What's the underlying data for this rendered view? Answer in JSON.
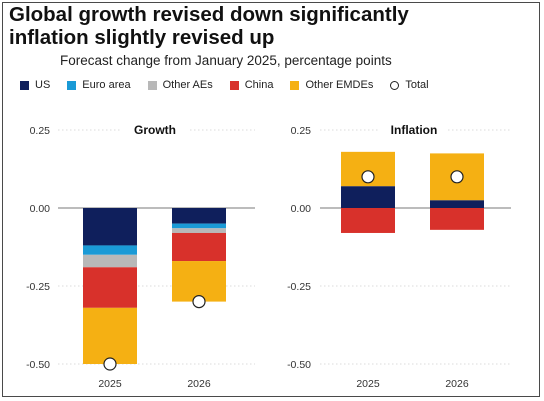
{
  "title_line1": "Global growth revised down significantly",
  "title_line2": "inflation slightly revised up",
  "subtitle": "Forecast change from January 2025, percentage points",
  "legend": [
    {
      "label": "US",
      "color": "#0f1f5c",
      "kind": "swatch"
    },
    {
      "label": "Euro area",
      "color": "#1a9ad6",
      "kind": "swatch"
    },
    {
      "label": "Other AEs",
      "color": "#b8b8b8",
      "kind": "swatch"
    },
    {
      "label": "China",
      "color": "#d8312b",
      "kind": "swatch"
    },
    {
      "label": "Other EMDEs",
      "color": "#f5b013",
      "kind": "swatch"
    },
    {
      "label": "Total",
      "color": "#ffffff",
      "kind": "marker"
    }
  ],
  "chart_data": [
    {
      "type": "bar",
      "stacked": true,
      "title": "Growth",
      "categories": [
        "2025",
        "2026"
      ],
      "ylim": [
        -0.5,
        0.25
      ],
      "yticks": [
        "0.25",
        "0.00",
        "-0.25",
        "-0.50"
      ],
      "yticks_values": [
        0.25,
        0,
        -0.25,
        -0.5
      ],
      "gridlines": true,
      "series": [
        {
          "name": "US",
          "color": "#0f1f5c",
          "values": [
            -0.12,
            -0.05
          ]
        },
        {
          "name": "Euro area",
          "color": "#1a9ad6",
          "values": [
            -0.03,
            -0.015
          ]
        },
        {
          "name": "Other AEs",
          "color": "#b8b8b8",
          "values": [
            -0.04,
            -0.015
          ]
        },
        {
          "name": "China",
          "color": "#d8312b",
          "values": [
            -0.13,
            -0.09
          ]
        },
        {
          "name": "Other EMDEs",
          "color": "#f5b013",
          "values": [
            -0.18,
            -0.13
          ]
        }
      ],
      "total": {
        "name": "Total",
        "values": [
          -0.5,
          -0.3
        ]
      }
    },
    {
      "type": "bar",
      "stacked": true,
      "title": "Inflation",
      "categories": [
        "2025",
        "2026"
      ],
      "ylim": [
        -0.5,
        0.25
      ],
      "yticks": [
        "0.25",
        "0.00",
        "-0.25",
        "-0.50"
      ],
      "yticks_values": [
        0.25,
        0,
        -0.25,
        -0.5
      ],
      "gridlines": true,
      "series": [
        {
          "name": "US",
          "color": "#0f1f5c",
          "values": [
            0.07,
            0.025
          ]
        },
        {
          "name": "China",
          "color": "#d8312b",
          "values": [
            -0.08,
            -0.07
          ]
        },
        {
          "name": "Other EMDEs",
          "color": "#f5b013",
          "values": [
            0.11,
            0.15
          ]
        }
      ],
      "total": {
        "name": "Total",
        "values": [
          0.1,
          0.1
        ]
      }
    }
  ]
}
